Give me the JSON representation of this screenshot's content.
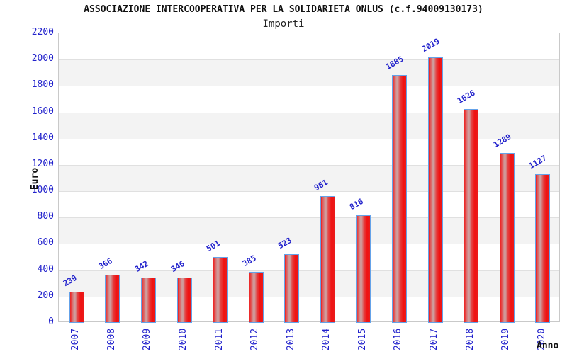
{
  "page": {
    "title": "ASSOCIAZIONE INTERCOOPERATIVA PER LA SOLIDARIETA ONLUS (c.f.94009130173)",
    "subtitle": "Importi"
  },
  "chart_data": {
    "type": "bar",
    "title": "ASSOCIAZIONE INTERCOOPERATIVA PER LA SOLIDARIETA ONLUS (c.f.94009130173)",
    "subtitle": "Importi",
    "xlabel": "Anno",
    "ylabel": "Euro",
    "categories": [
      "2007",
      "2008",
      "2009",
      "2010",
      "2011",
      "2012",
      "2013",
      "2014",
      "2015",
      "2016",
      "2017",
      "2018",
      "2019",
      "2020"
    ],
    "values": [
      239,
      366,
      342,
      346,
      501,
      385,
      523,
      961,
      816,
      1885,
      2019,
      1626,
      1289,
      1127
    ],
    "ylim": [
      0,
      2200
    ],
    "ytick_step": 200,
    "ytick_labels": [
      "0",
      "200",
      "400",
      "600",
      "800",
      "1000",
      "1200",
      "1400",
      "1600",
      "1800",
      "2000",
      "2200"
    ],
    "value_labels_shown": true,
    "legend_position": "none",
    "grid": "horizontal gridlines with alternating gray bands",
    "colors": {
      "bar_fill": "#ee1111",
      "bar_highlight": "#cf9d9d",
      "bar_border": "#64a2e9",
      "tick_label": "#2222cc",
      "value_label": "#2222cc",
      "band_gray": "#f3f3f3",
      "gridline": "#e0e0e0",
      "plot_border": "#c9c9c9",
      "title_color": "#111111",
      "background": "#ffffff"
    }
  },
  "layout_text": {
    "note": ""
  }
}
